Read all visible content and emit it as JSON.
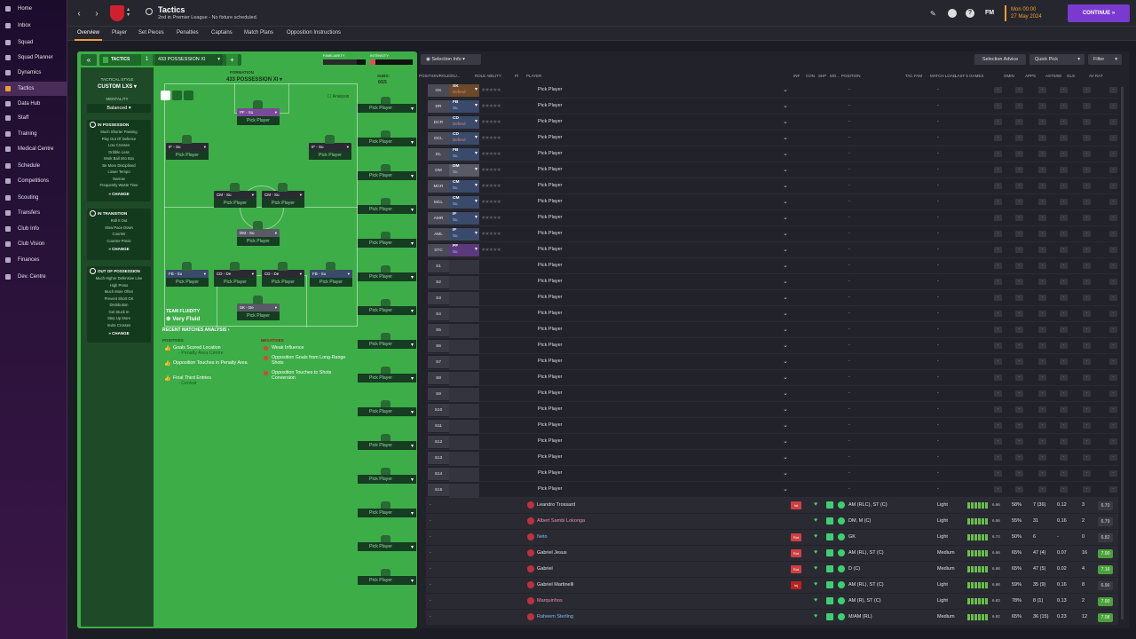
{
  "sidebar": {
    "items": [
      {
        "label": "Home"
      },
      {
        "label": "Inbox"
      },
      {
        "label": "Squad"
      },
      {
        "label": "Squad Planner"
      },
      {
        "label": "Dynamics"
      },
      {
        "label": "Tactics",
        "active": true
      },
      {
        "label": "Data Hub"
      },
      {
        "label": "Staff"
      },
      {
        "label": "Training"
      },
      {
        "label": "Medical Centre"
      },
      {
        "label": "Schedule"
      },
      {
        "label": "Competitions"
      },
      {
        "label": "Scouting"
      },
      {
        "label": "Transfers"
      },
      {
        "label": "Club Info"
      },
      {
        "label": "Club Vision"
      },
      {
        "label": "Finances"
      },
      {
        "label": "Dev. Centre"
      }
    ]
  },
  "header": {
    "title": "Tactics",
    "subtitle": "2nd in Premier League - No fixture scheduled.",
    "fm_label": "FM",
    "time": "Mon 00:00",
    "date": "27 May 2024",
    "continue_label": "CONTINUE"
  },
  "subnav": {
    "tabs": [
      {
        "label": "Overview",
        "active": true
      },
      {
        "label": "Player"
      },
      {
        "label": "Set Pieces"
      },
      {
        "label": "Penalties"
      },
      {
        "label": "Captains"
      },
      {
        "label": "Match Plans"
      },
      {
        "label": "Opposition Instructions"
      }
    ]
  },
  "tactics": {
    "tactics_label": "TACTICS",
    "slot": "1",
    "tactic_name": "433 POSSESSION XI",
    "familiarity_label": "FAMILIARITY",
    "intensity_label": "INTENSITY",
    "familiarity_level": 0.8,
    "intensity_level": 0.12,
    "formation_label": "FORMATION",
    "formation": "433 POSSESSION XI",
    "subs_label": "SUBS:",
    "subs_count": "0/15",
    "analysis_label": "Analysis",
    "style_label": "TACTICAL STYLE",
    "style_value": "CUSTOM LXS",
    "mentality_label": "MENTALITY",
    "mentality_value": "Balanced",
    "in_possession": {
      "title": "IN POSSESSION",
      "items": [
        "Much Shorter Passing",
        "Play Out Of Defence",
        "Low Crosses",
        "Dribble Less",
        "Work Ball Into Box",
        "Be More Disciplined",
        "Lower Tempo",
        "Narrow",
        "Frequently Waste Time"
      ]
    },
    "in_transition": {
      "title": "IN TRANSITION",
      "items": [
        "Roll It Out",
        "Slow Pace Down",
        "Counter",
        "Counter-Press"
      ]
    },
    "out_of_possession": {
      "title": "OUT OF POSSESSION",
      "items": [
        "Much Higher Defensive Line",
        "High Press",
        "Much More Often",
        "Prevent Short GK",
        "Distribution",
        "Get Stuck In",
        "Step Up More",
        "Invite Crosses"
      ]
    },
    "change_label": "CHANGE",
    "fluidity_label": "TEAM FLUIDITY",
    "fluidity_value": "Very Fluid",
    "pick_label": "Pick Player",
    "positions": [
      {
        "role": "PF - Su",
        "color": "#7a4a9a"
      },
      {
        "role": "IF - Su",
        "color": "#2a2a32"
      },
      {
        "role": "IF - Su",
        "color": "#2a2a32"
      },
      {
        "role": "CM - Su",
        "color": "#2a2a32"
      },
      {
        "role": "CM - Su",
        "color": "#2a2a32"
      },
      {
        "role": "DM - Su",
        "color": "#5a5a66"
      },
      {
        "role": "FB - Su",
        "color": "#3a4a6a"
      },
      {
        "role": "CD - De",
        "color": "#2a2a32"
      },
      {
        "role": "CD - De",
        "color": "#2a2a32"
      },
      {
        "role": "FB - Su",
        "color": "#3a4a6a"
      },
      {
        "role": "SK - De",
        "color": "#5a5a66"
      }
    ],
    "recent_title": "RECENT MATCHES ANALYSIS",
    "positives_label": "POSITIVES",
    "negatives_label": "NEGATIVES",
    "positives": [
      {
        "text": "Goals Scored Location",
        "sub": "- Penalty Area Centre"
      },
      {
        "text": "Opposition Touches in Penalty Area",
        "sub": ""
      },
      {
        "text": "Final Third Entries",
        "sub": "- Central"
      }
    ],
    "negatives": [
      {
        "text": "Weak Influence"
      },
      {
        "text": "Opposition Goals from Long-Range Shots"
      },
      {
        "text": "Opposition Touches to Shots Conversion"
      }
    ]
  },
  "selection": {
    "info_label": "Selection Info",
    "advice_label": "Selection Advice",
    "quickpick_label": "Quick Pick",
    "filter_label": "Filter",
    "columns": [
      "POSITION/ROLE/DU...",
      "ROLE ABILITY",
      "PI",
      "PLAYER",
      "INF",
      "CON",
      "SHP",
      "MO...",
      "POSITION",
      "TAC FAM",
      "MATCH LOAD",
      "LAST 5 GAMES",
      "GMIN",
      "APPS",
      "ASTS/90",
      "GLS",
      "AV RAT"
    ],
    "pick_label": "Pick Player",
    "slots": [
      {
        "pos": "GK",
        "role": "SK",
        "duty": "Defend",
        "color": "#6a4a2a"
      },
      {
        "pos": "DR",
        "role": "FB",
        "duty": "Su",
        "color": "#3a4a6a"
      },
      {
        "pos": "DCR",
        "role": "CD",
        "duty": "Defend",
        "color": "#3a4a6a"
      },
      {
        "pos": "DCL",
        "role": "CD",
        "duty": "Defend",
        "color": "#3a4a6a"
      },
      {
        "pos": "DL",
        "role": "FB",
        "duty": "Su",
        "color": "#3a4a6a"
      },
      {
        "pos": "DM",
        "role": "DM",
        "duty": "Su",
        "color": "#5a5a66"
      },
      {
        "pos": "MCR",
        "role": "CM",
        "duty": "Su",
        "color": "#3a4a6a"
      },
      {
        "pos": "MCL",
        "role": "CM",
        "duty": "Su",
        "color": "#3a4a6a"
      },
      {
        "pos": "AMR",
        "role": "IF",
        "duty": "Su",
        "color": "#3a4a6a"
      },
      {
        "pos": "AML",
        "role": "IF",
        "duty": "Su",
        "color": "#3a4a6a"
      },
      {
        "pos": "STC",
        "role": "PF",
        "duty": "Su",
        "color": "#5a3a7a"
      },
      {
        "pos": "S1"
      },
      {
        "pos": "S2"
      },
      {
        "pos": "S3"
      },
      {
        "pos": "S4"
      },
      {
        "pos": "S5"
      },
      {
        "pos": "S6"
      },
      {
        "pos": "S7"
      },
      {
        "pos": "S8"
      },
      {
        "pos": "S9"
      },
      {
        "pos": "S10"
      },
      {
        "pos": "S11"
      },
      {
        "pos": "S12"
      },
      {
        "pos": "S13"
      },
      {
        "pos": "S14"
      },
      {
        "pos": "S15"
      }
    ],
    "players": [
      {
        "name": "Leandro Trossard",
        "position": "AM (RLC), ST (C)",
        "load": "Light",
        "form": "6.66",
        "gmin": "58%",
        "apps": "7 (36)",
        "asts": "0.12",
        "gls": "3",
        "rating": "6.70",
        "badge": "Int",
        "badge_color": "#d04040",
        "rating_color": "#3a3a44",
        "name_color": "#e0e0e6"
      },
      {
        "name": "Albert Sambi Lokonga",
        "position": "DM, M (C)",
        "load": "Light",
        "form": "6.56",
        "gmin": "55%",
        "apps": "31",
        "asts": "0.16",
        "gls": "2",
        "rating": "6.79",
        "badge": "",
        "badge_color": "",
        "rating_color": "#3a3a44",
        "name_color": "#e890b0"
      },
      {
        "name": "Neto",
        "position": "GK",
        "load": "Light",
        "form": "6.74",
        "gmin": "50%",
        "apps": "6",
        "asts": "-",
        "gls": "0",
        "rating": "6.82",
        "badge": "Rot",
        "badge_color": "#d04040",
        "rating_color": "#3a3a44",
        "name_color": "#8ab8f0"
      },
      {
        "name": "Gabriel Jesus",
        "position": "AM (RL), ST (C)",
        "load": "Medium",
        "form": "6.66",
        "gmin": "65%",
        "apps": "47 (4)",
        "asts": "0.07",
        "gls": "16",
        "rating": "7.00",
        "badge": "Rot",
        "badge_color": "#d04040",
        "rating_color": "#4aa03a",
        "name_color": "#e0e0e6"
      },
      {
        "name": "Gabriel",
        "position": "D (C)",
        "load": "Medium",
        "form": "6.68",
        "gmin": "65%",
        "apps": "47 (5)",
        "asts": "0.02",
        "gls": "4",
        "rating": "7.16",
        "badge": "Rot",
        "badge_color": "#d04040",
        "rating_color": "#4aa03a",
        "name_color": "#e0e0e6"
      },
      {
        "name": "Gabriel Martinelli",
        "position": "AM (RL), ST (C)",
        "load": "Light",
        "form": "6.68",
        "gmin": "59%",
        "apps": "35 (9)",
        "asts": "0.16",
        "gls": "8",
        "rating": "6.96",
        "badge": "Inj",
        "badge_color": "#c02020",
        "rating_color": "#3a3a44",
        "name_color": "#e0e0e6"
      },
      {
        "name": "Marquinhos",
        "position": "AM (R), ST (C)",
        "load": "Light",
        "form": "6.83",
        "gmin": "78%",
        "apps": "8 (1)",
        "asts": "0.13",
        "gls": "2",
        "rating": "7.00",
        "badge": "",
        "badge_color": "",
        "rating_color": "#4aa03a",
        "name_color": "#e890b0"
      },
      {
        "name": "Raheem Sterling",
        "position": "M/AM (RL)",
        "load": "Medium",
        "form": "6.92",
        "gmin": "65%",
        "apps": "36 (15)",
        "asts": "0.23",
        "gls": "12",
        "rating": "7.08",
        "badge": "",
        "badge_color": "",
        "rating_color": "#4aa03a",
        "name_color": "#8ab8f0"
      }
    ]
  },
  "colors": {
    "accent": "#f0a030",
    "pitch": "#3dad48",
    "continue": "#7a3ad0"
  }
}
